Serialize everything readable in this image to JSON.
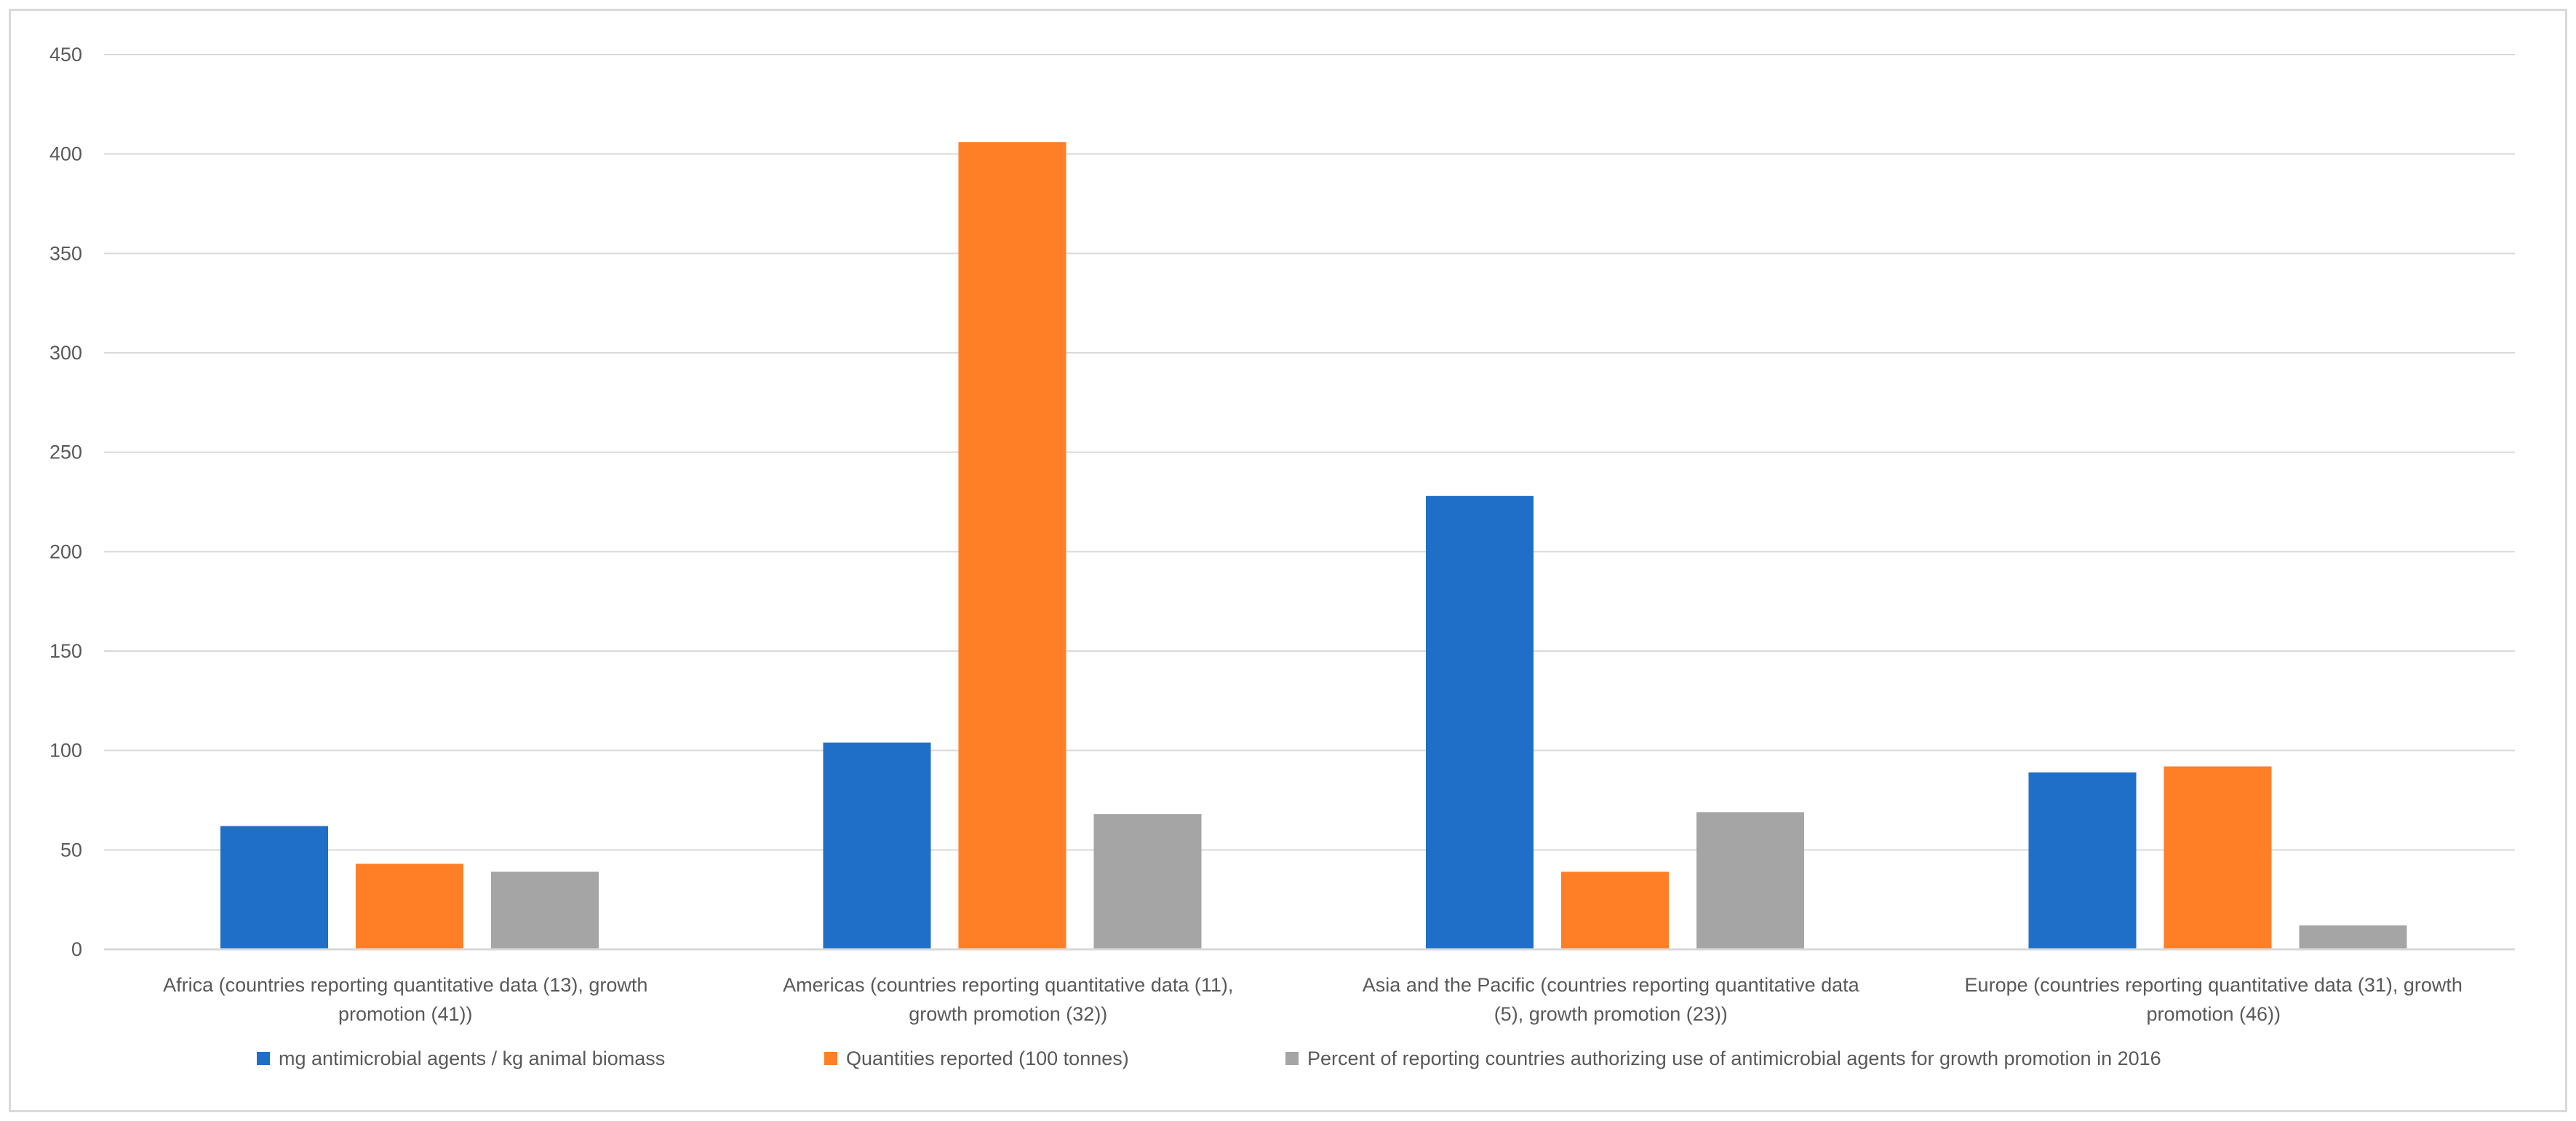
{
  "chart_data": {
    "type": "bar",
    "title": "",
    "xlabel": "",
    "ylabel": "",
    "ylim": [
      0,
      450
    ],
    "yticks": [
      0,
      50,
      100,
      150,
      200,
      250,
      300,
      350,
      400,
      450
    ],
    "grid": true,
    "legend_position": "bottom",
    "categories": [
      [
        "Africa (countries reporting quantitative data (13), growth",
        "promotion (41))"
      ],
      [
        "Americas (countries reporting quantitative data (11),",
        "growth promotion (32))"
      ],
      [
        "Asia and the Pacific (countries reporting quantitative data",
        "(5), growth promotion (23))"
      ],
      [
        "Europe (countries reporting quantitative data (31), growth",
        "promotion (46))"
      ]
    ],
    "series": [
      {
        "name": "mg antimicrobial agents / kg animal biomass",
        "color": "#1f6fc9",
        "values": [
          62,
          104,
          228,
          89
        ]
      },
      {
        "name": "Quantities reported (100 tonnes)",
        "color": "#ff7f27",
        "values": [
          43,
          406,
          39,
          92
        ]
      },
      {
        "name": "Percent of reporting countries authorizing use of antimicrobial agents for growth promotion in 2016",
        "color": "#a5a5a5",
        "values": [
          39,
          68,
          69,
          12
        ]
      }
    ]
  }
}
